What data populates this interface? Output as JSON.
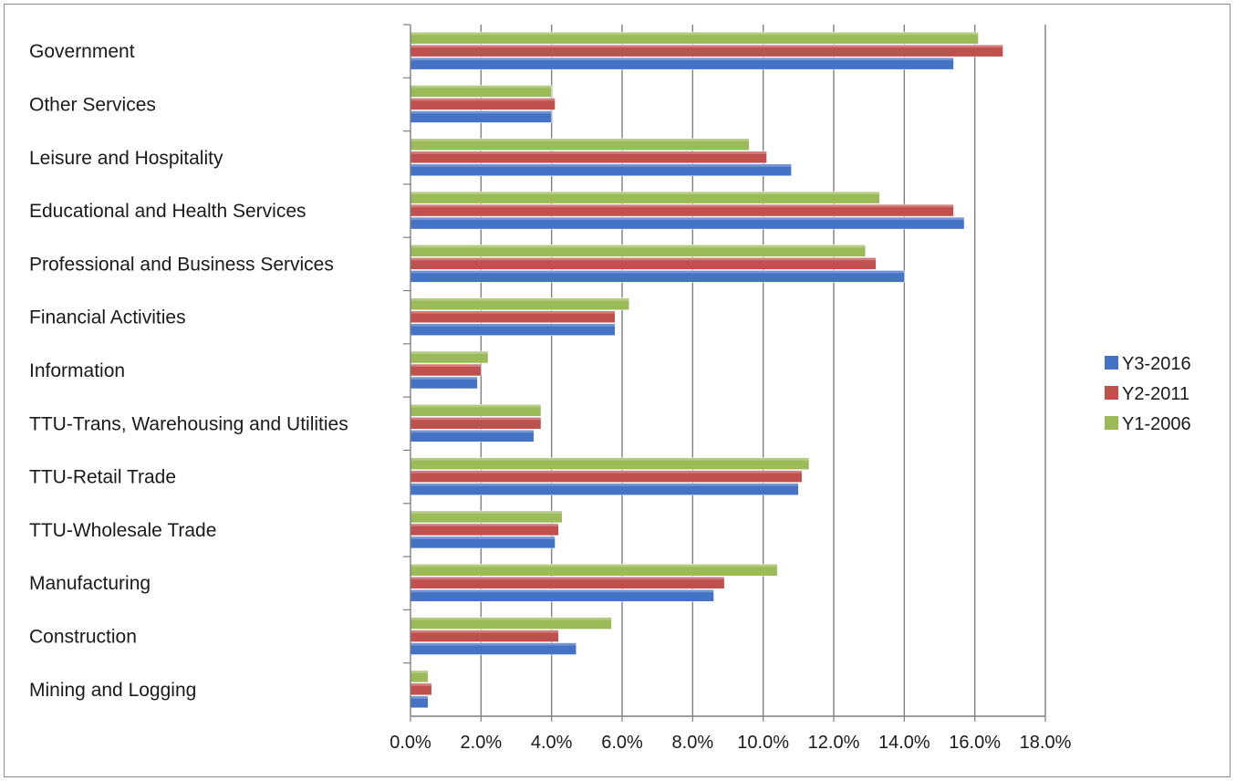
{
  "chart_data": {
    "type": "bar",
    "orientation": "horizontal",
    "title": "",
    "xlabel": "",
    "ylabel": "",
    "xlim": [
      0,
      18
    ],
    "x_ticks": [
      "0.0%",
      "2.0%",
      "4.0%",
      "6.0%",
      "8.0%",
      "10.0%",
      "12.0%",
      "14.0%",
      "16.0%",
      "18.0%"
    ],
    "grid": "vertical major gridlines",
    "legend_position": "right",
    "categories": [
      "Government",
      "Other Services",
      "Leisure and Hospitality",
      "Educational and Health Services",
      "Professional and Business Services",
      "Financial Activities",
      "Information",
      "TTU-Trans, Warehousing and Utilities",
      "TTU-Retail Trade",
      "TTU-Wholesale Trade",
      "Manufacturing",
      "Construction",
      "Mining and Logging"
    ],
    "series": [
      {
        "name": "Y3-2016",
        "color": "#4472C4",
        "values": [
          15.4,
          4.0,
          10.8,
          15.7,
          14.0,
          5.8,
          1.9,
          3.5,
          11.0,
          4.1,
          8.6,
          4.7,
          0.5
        ]
      },
      {
        "name": "Y2-2011",
        "color": "#C0504D",
        "values": [
          16.8,
          4.1,
          10.1,
          15.4,
          13.2,
          5.8,
          2.0,
          3.7,
          11.1,
          4.2,
          8.9,
          4.2,
          0.6
        ]
      },
      {
        "name": "Y1-2006",
        "color": "#9BBB59",
        "values": [
          16.1,
          4.0,
          9.6,
          13.3,
          12.9,
          6.2,
          2.2,
          3.7,
          11.3,
          4.3,
          10.4,
          5.7,
          0.5
        ]
      }
    ]
  }
}
